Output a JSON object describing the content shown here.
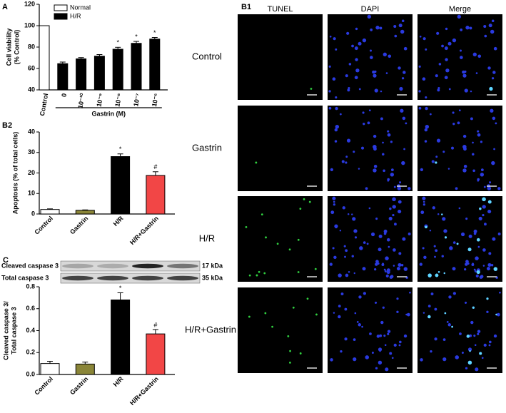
{
  "chart_data": [
    {
      "type": "bar",
      "panel": "A",
      "y_label": [
        "Cell viability",
        "(% Control)"
      ],
      "categories": [
        "Control",
        "0",
        "10⁻¹⁰",
        "10⁻⁹",
        "10⁻⁸",
        "10⁻⁷",
        "10⁻⁶"
      ],
      "series": [
        {
          "name": "Normal",
          "color": "#ffffff",
          "values": [
            100,
            null,
            null,
            null,
            null,
            null,
            null
          ],
          "errors": [
            null,
            null,
            null,
            null,
            null,
            null,
            null
          ]
        },
        {
          "name": "H/R",
          "color": "#000000",
          "values": [
            null,
            64.5,
            69,
            71.5,
            78,
            83.5,
            87.5
          ],
          "errors": [
            null,
            1.5,
            1.2,
            1.5,
            1.8,
            1.8,
            1.5
          ]
        }
      ],
      "annotations": [
        null,
        null,
        null,
        null,
        "*",
        "*",
        "*"
      ],
      "group_label": "Gastrin (M)",
      "ylim": [
        40,
        120
      ],
      "yticks": [
        40,
        60,
        80,
        100,
        120
      ],
      "legend": "top"
    },
    {
      "type": "bar",
      "panel": "B2",
      "y_label": [
        "Apoptosis (% of total cells)"
      ],
      "categories": [
        "Control",
        "Gastrin",
        "H/R",
        "H/R+Gastrin"
      ],
      "values": [
        2.2,
        1.8,
        28,
        18.8
      ],
      "errors": [
        0.3,
        0.2,
        1.3,
        1.8
      ],
      "colors": [
        "#ffffff",
        "#8a8538",
        "#000000",
        "#f24646"
      ],
      "annotations": [
        null,
        null,
        "*",
        "#"
      ],
      "ylim": [
        0,
        40
      ],
      "yticks": [
        0,
        10,
        20,
        30,
        40
      ]
    },
    {
      "type": "bar",
      "panel": "C",
      "y_label": [
        "Cleaved caspase 3/",
        "Total caspase 3"
      ],
      "categories": [
        "Control",
        "Gastrin",
        "H/R",
        "H/R+Gastrin"
      ],
      "values": [
        0.1,
        0.095,
        0.68,
        0.37
      ],
      "errors": [
        0.02,
        0.018,
        0.065,
        0.04
      ],
      "colors": [
        "#ffffff",
        "#8a8538",
        "#000000",
        "#f24646"
      ],
      "annotations": [
        null,
        null,
        "*",
        "#"
      ],
      "ylim": [
        0,
        0.8
      ],
      "yticks": [
        {
          "value": 0,
          "label": "0.0"
        },
        0.2,
        0.4,
        0.6,
        0.8
      ]
    }
  ],
  "blot": {
    "rows": [
      {
        "label": "Cleaved caspase 3",
        "size": "17 kDa"
      },
      {
        "label": "Total caspase 3",
        "size": "35 kDa"
      }
    ]
  },
  "micrograph": {
    "panel": "B1",
    "columns": [
      "TUNEL",
      "DAPI",
      "Merge"
    ],
    "rows": [
      "Control",
      "Gastrin",
      "H/R",
      "H/R+Gastrin"
    ]
  }
}
